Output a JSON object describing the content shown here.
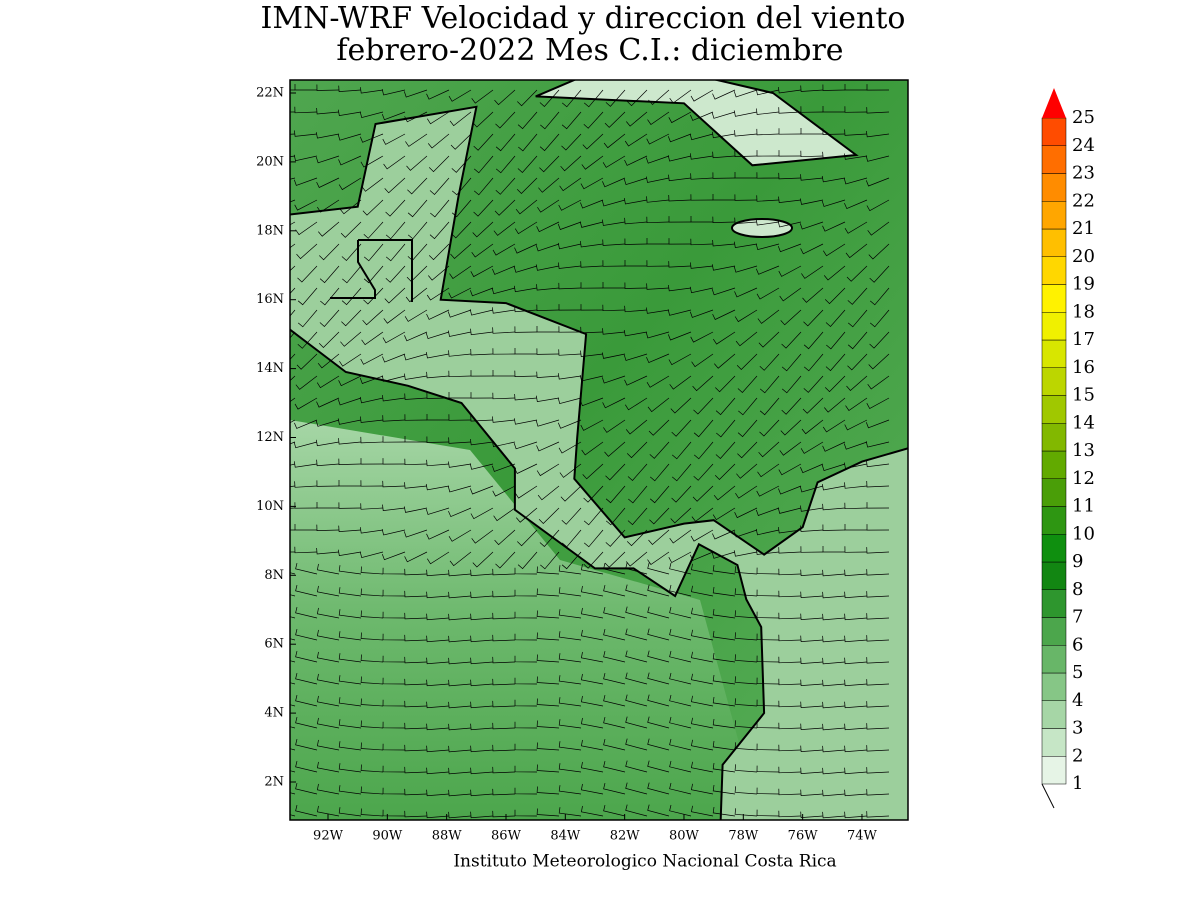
{
  "title": [
    "IMN-WRF Velocidad y direccion del viento",
    "febrero-2022 Mes C.I.: diciembre"
  ],
  "lat_labels": [
    "2N",
    "4N",
    "6N",
    "8N",
    "10N",
    "12N",
    "14N",
    "16N",
    "18N",
    "20N",
    "22N"
  ],
  "lon_labels": [
    "92W",
    "90W",
    "88W",
    "86W",
    "84W",
    "82W",
    "80W",
    "78W",
    "76W",
    "74W"
  ],
  "colorbar": {
    "levels": [
      "1",
      "2",
      "3",
      "4",
      "5",
      "6",
      "7",
      "8",
      "9",
      "10",
      "11",
      "12",
      "13",
      "14",
      "15",
      "16",
      "17",
      "18",
      "19",
      "20",
      "21",
      "22",
      "23",
      "24",
      "25"
    ],
    "colors": [
      "#e6f4e6",
      "#c6e6c6",
      "#a6d6a6",
      "#86c686",
      "#68b668",
      "#4ca64c",
      "#2e962e",
      "#128612",
      "#0f8f0f",
      "#2e9612",
      "#4a9e08",
      "#62aa00",
      "#82b800",
      "#a0c800",
      "#bcd600",
      "#d8e600",
      "#f0f000",
      "#fff200",
      "#ffd700",
      "#ffbf00",
      "#ffa600",
      "#ff8c00",
      "#ff6e00",
      "#ff4c00",
      "#ff2800"
    ],
    "over_color": "#ff0000"
  },
  "footer": "Instituto Meteorologico Nacional Costa Rica"
}
